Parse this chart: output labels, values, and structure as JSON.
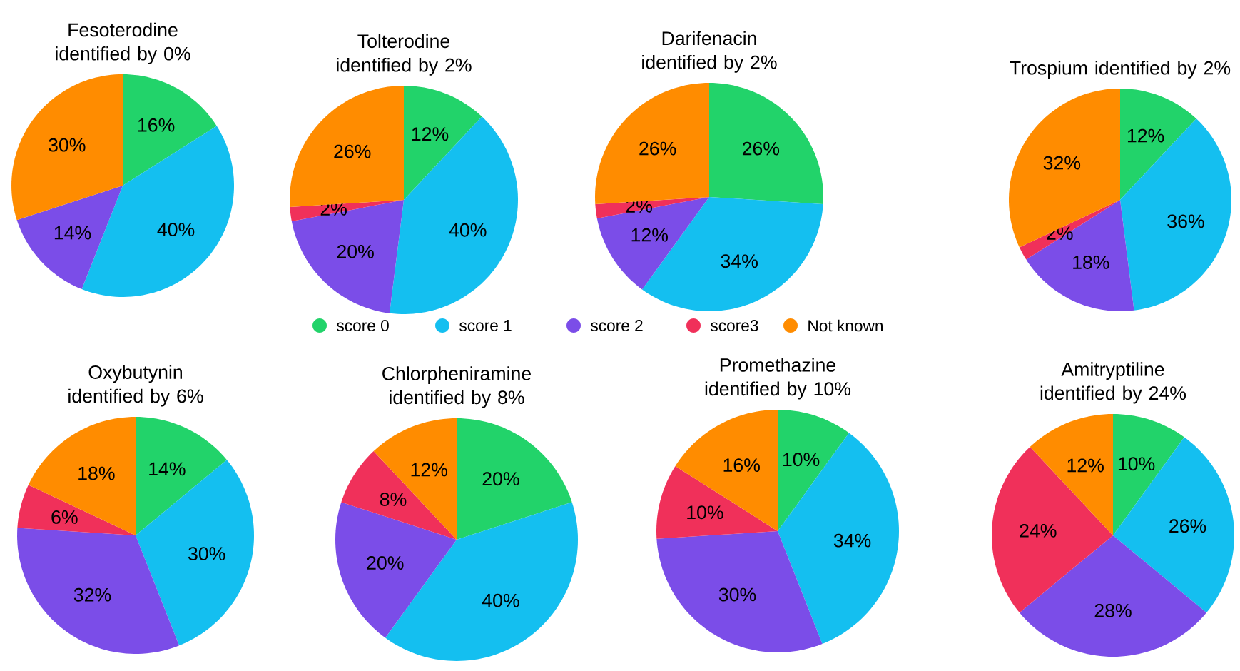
{
  "chart_data": [
    {
      "type": "pie",
      "title": "Fesoterodine identified by 0%",
      "categories": [
        "score 0",
        "score 1",
        "score 2",
        "score3",
        "Not known"
      ],
      "values": [
        16,
        40,
        14,
        0,
        30
      ],
      "value_labels": [
        "16%",
        "40%",
        "14%",
        null,
        "30%"
      ],
      "colors": [
        "#22d36a",
        "#14bff0",
        "#7b4de8",
        "#f0305a",
        "#ff8c00"
      ],
      "legend": "bottom"
    },
    {
      "type": "pie",
      "title": "Tolterodine identified by 2%",
      "values": [
        12,
        40,
        20,
        2,
        26
      ],
      "value_labels": [
        "12%",
        "40%",
        "20%",
        "2%",
        "26%"
      ],
      "colors": [
        "#22d36a",
        "#14bff0",
        "#7b4de8",
        "#f0305a",
        "#ff8c00"
      ]
    },
    {
      "type": "pie",
      "title": "Darifenacin identified by 2%",
      "values": [
        26,
        34,
        12,
        2,
        26
      ],
      "value_labels": [
        "26%",
        "34%",
        "12%",
        "2%",
        "26%"
      ],
      "colors": [
        "#22d36a",
        "#14bff0",
        "#7b4de8",
        "#f0305a",
        "#ff8c00"
      ]
    },
    {
      "type": "pie",
      "title": "Trospium identified by 2%",
      "values": [
        12,
        36,
        18,
        2,
        32
      ],
      "value_labels": [
        "12%",
        "36%",
        "18%",
        "2%",
        "32%"
      ],
      "colors": [
        "#22d36a",
        "#14bff0",
        "#7b4de8",
        "#f0305a",
        "#ff8c00"
      ]
    },
    {
      "type": "pie",
      "title": "Oxybutynin identified by 6%",
      "values": [
        14,
        30,
        32,
        6,
        18
      ],
      "value_labels": [
        "14%",
        "30%",
        "32%",
        "6%",
        "18%"
      ],
      "colors": [
        "#22d36a",
        "#14bff0",
        "#7b4de8",
        "#f0305a",
        "#ff8c00"
      ]
    },
    {
      "type": "pie",
      "title": "Chlorpheniramine identified by 8%",
      "values": [
        20,
        40,
        20,
        8,
        12
      ],
      "value_labels": [
        "20%",
        "40%",
        "20%",
        "8%",
        "12%"
      ],
      "colors": [
        "#22d36a",
        "#14bff0",
        "#7b4de8",
        "#f0305a",
        "#ff8c00"
      ]
    },
    {
      "type": "pie",
      "title": "Promethazine identified by 10%",
      "values": [
        10,
        34,
        30,
        10,
        16
      ],
      "value_labels": [
        "10%",
        "34%",
        "30%",
        "10%",
        "16%"
      ],
      "colors": [
        "#22d36a",
        "#14bff0",
        "#7b4de8",
        "#f0305a",
        "#ff8c00"
      ]
    },
    {
      "type": "pie",
      "title": "Amitryptiline identified by 24%",
      "values": [
        10,
        26,
        28,
        24,
        12
      ],
      "value_labels": [
        "10%",
        "26%",
        "28%",
        "24%",
        "12%"
      ],
      "colors": [
        "#22d36a",
        "#14bff0",
        "#7b4de8",
        "#f0305a",
        "#ff8c00"
      ]
    }
  ]
}
